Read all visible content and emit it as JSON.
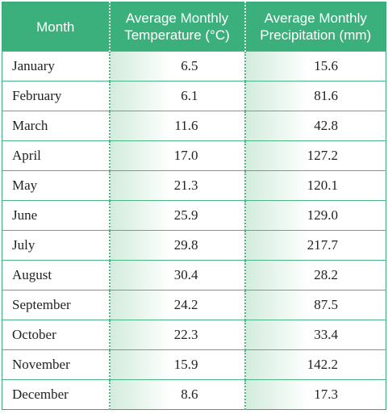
{
  "table": {
    "header": [
      "Month",
      "Average Monthly Temperature (°C)",
      "Average Monthly Precipitation (mm)"
    ],
    "rows": [
      [
        "January",
        "6.5",
        "15.6"
      ],
      [
        "February",
        "6.1",
        "81.6"
      ],
      [
        "March",
        "11.6",
        "42.8"
      ],
      [
        "April",
        "17.0",
        "127.2"
      ],
      [
        "May",
        "21.3",
        "120.1"
      ],
      [
        "June",
        "25.9",
        "129.0"
      ],
      [
        "July",
        "29.8",
        "217.7"
      ],
      [
        "August",
        "30.4",
        "28.2"
      ],
      [
        "September",
        "24.2",
        "87.5"
      ],
      [
        "October",
        "22.3",
        "33.4"
      ],
      [
        "November",
        "15.9",
        "142.2"
      ],
      [
        "December",
        "8.6",
        "17.3"
      ]
    ]
  }
}
